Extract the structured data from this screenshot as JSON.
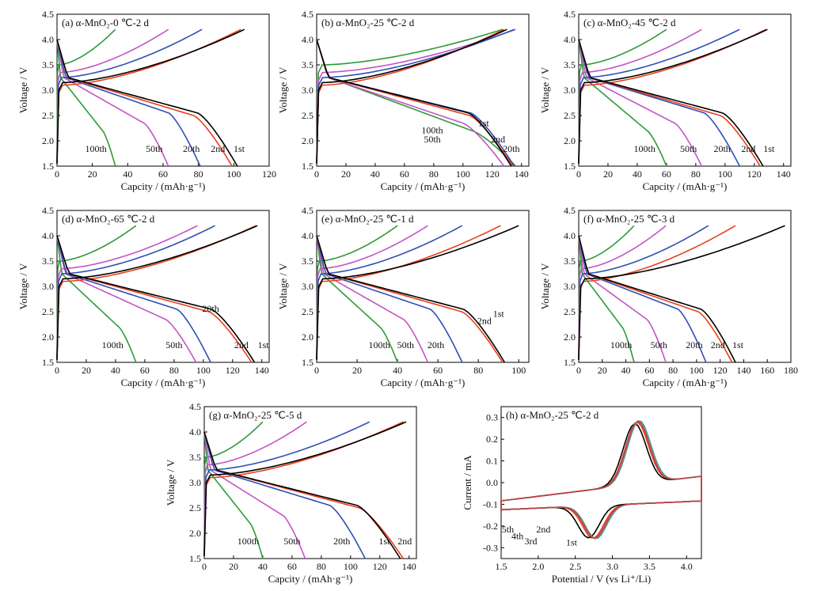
{
  "colors": {
    "c1": "#000000",
    "c2": "#e8401c",
    "c20": "#2f4fb5",
    "c50": "#c454c4",
    "c100": "#2e9a3a",
    "c3": "#c44040",
    "c4": "#888888",
    "c5": "#2fa0a0"
  },
  "chart_data": [
    {
      "id": "a",
      "type": "line",
      "title": "(a) α-MnO₂-0 ℃-2 d",
      "xlabel": "Capcity / (mAh·g⁻¹)",
      "ylabel": "Voltage / V",
      "xlim": [
        0,
        120
      ],
      "ylim": [
        1.5,
        4.5
      ],
      "xticks": [
        0,
        20,
        40,
        60,
        80,
        100,
        120
      ],
      "yticks": [
        1.5,
        2.0,
        2.5,
        3.0,
        3.5,
        4.0,
        4.5
      ],
      "cycles": [
        {
          "name": "1st",
          "discharge_capacity": 102,
          "charge_capacity": 106
        },
        {
          "name": "2nd",
          "discharge_capacity": 99,
          "charge_capacity": 104
        },
        {
          "name": "20th",
          "discharge_capacity": 81,
          "charge_capacity": 82
        },
        {
          "name": "50th",
          "discharge_capacity": 63,
          "charge_capacity": 63
        },
        {
          "name": "100th",
          "discharge_capacity": 33,
          "charge_capacity": 33
        }
      ],
      "labels": [
        {
          "text": "100th",
          "x": 22,
          "y": 1.78
        },
        {
          "text": "50th",
          "x": 55,
          "y": 1.78
        },
        {
          "text": "20th",
          "x": 76,
          "y": 1.78
        },
        {
          "text": "2nd",
          "x": 91,
          "y": 1.78
        },
        {
          "text": "1st",
          "x": 103,
          "y": 1.78
        }
      ]
    },
    {
      "id": "b",
      "type": "line",
      "title": "(b) α-MnO₂-25 ℃-2 d",
      "xlabel": "Capcity / (mAh·g⁻¹)",
      "ylabel": "Voltage / V",
      "xlim": [
        0,
        145
      ],
      "ylim": [
        1.5,
        4.5
      ],
      "xticks": [
        0,
        20,
        40,
        60,
        80,
        100,
        120,
        140
      ],
      "yticks": [
        1.5,
        2.0,
        2.5,
        3.0,
        3.5,
        4.0,
        4.5
      ],
      "cycles": [
        {
          "name": "1st",
          "discharge_capacity": 133,
          "charge_capacity": 130
        },
        {
          "name": "2nd",
          "discharge_capacity": 134,
          "charge_capacity": 128
        },
        {
          "name": "20th",
          "discharge_capacity": 135,
          "charge_capacity": 135
        },
        {
          "name": "50th",
          "discharge_capacity": 128,
          "charge_capacity": 136
        },
        {
          "name": "100th",
          "discharge_capacity": 136,
          "charge_capacity": 127
        }
      ],
      "labels": [
        {
          "text": "100th",
          "x": 79,
          "y": 2.15
        },
        {
          "text": "50th",
          "x": 79,
          "y": 1.97
        },
        {
          "text": "1st",
          "x": 114,
          "y": 2.29
        },
        {
          "text": "2nd",
          "x": 124,
          "y": 1.97
        },
        {
          "text": "20th",
          "x": 133,
          "y": 1.78
        }
      ]
    },
    {
      "id": "c",
      "type": "line",
      "title": "(c) α-MnO₂-45 ℃-2 d",
      "xlabel": "Capcity / (mAh·g⁻¹)",
      "ylabel": "Voltage / V",
      "xlim": [
        0,
        145
      ],
      "ylim": [
        1.5,
        4.5
      ],
      "xticks": [
        0,
        20,
        40,
        60,
        80,
        100,
        120,
        140
      ],
      "yticks": [
        1.5,
        2.0,
        2.5,
        3.0,
        3.5,
        4.0,
        4.5
      ],
      "cycles": [
        {
          "name": "1st",
          "discharge_capacity": 126,
          "charge_capacity": 129
        },
        {
          "name": "2nd",
          "discharge_capacity": 124,
          "charge_capacity": 128
        },
        {
          "name": "20th",
          "discharge_capacity": 110,
          "charge_capacity": 110
        },
        {
          "name": "50th",
          "discharge_capacity": 84,
          "charge_capacity": 84
        },
        {
          "name": "100th",
          "discharge_capacity": 60,
          "charge_capacity": 60
        }
      ],
      "labels": [
        {
          "text": "100th",
          "x": 45,
          "y": 1.78
        },
        {
          "text": "50th",
          "x": 75,
          "y": 1.78
        },
        {
          "text": "20th",
          "x": 98,
          "y": 1.78
        },
        {
          "text": "2nd",
          "x": 116,
          "y": 1.78
        },
        {
          "text": "1st",
          "x": 130,
          "y": 1.78
        }
      ]
    },
    {
      "id": "d",
      "type": "line",
      "title": "(d) α-MnO₂-65 ℃-2 d",
      "xlabel": "Capcity / (mAh·g⁻¹)",
      "ylabel": "Voltage / V",
      "xlim": [
        0,
        145
      ],
      "ylim": [
        1.5,
        4.5
      ],
      "xticks": [
        0,
        20,
        40,
        60,
        80,
        100,
        120,
        140
      ],
      "yticks": [
        1.5,
        2.0,
        2.5,
        3.0,
        3.5,
        4.0,
        4.5
      ],
      "cycles": [
        {
          "name": "1st",
          "discharge_capacity": 135,
          "charge_capacity": 137
        },
        {
          "name": "2nd",
          "discharge_capacity": 133,
          "charge_capacity": 136
        },
        {
          "name": "20th",
          "discharge_capacity": 105,
          "charge_capacity": 108
        },
        {
          "name": "50th",
          "discharge_capacity": 95,
          "charge_capacity": 96
        },
        {
          "name": "100th",
          "discharge_capacity": 54,
          "charge_capacity": 54
        }
      ],
      "labels": [
        {
          "text": "100th",
          "x": 38,
          "y": 1.78
        },
        {
          "text": "50th",
          "x": 80,
          "y": 1.78
        },
        {
          "text": "20th",
          "x": 105,
          "y": 2.5
        },
        {
          "text": "2nd",
          "x": 126,
          "y": 1.78
        },
        {
          "text": "1st",
          "x": 141,
          "y": 1.78
        }
      ]
    },
    {
      "id": "e",
      "type": "line",
      "title": "(e) α-MnO₂-25 ℃-1 d",
      "xlabel": "Capcity / (mAh·g⁻¹)",
      "ylabel": "Voltage / V",
      "xlim": [
        0,
        105
      ],
      "ylim": [
        1.5,
        4.5
      ],
      "xticks": [
        0,
        20,
        40,
        60,
        80,
        100
      ],
      "yticks": [
        1.5,
        2.0,
        2.5,
        3.0,
        3.5,
        4.0,
        4.5
      ],
      "cycles": [
        {
          "name": "1st",
          "discharge_capacity": 93,
          "charge_capacity": 100
        },
        {
          "name": "2nd",
          "discharge_capacity": 92,
          "charge_capacity": 91
        },
        {
          "name": "20th",
          "discharge_capacity": 72,
          "charge_capacity": 72
        },
        {
          "name": "50th",
          "discharge_capacity": 55,
          "charge_capacity": 55
        },
        {
          "name": "100th",
          "discharge_capacity": 40,
          "charge_capacity": 40
        }
      ],
      "labels": [
        {
          "text": "100th",
          "x": 31,
          "y": 1.78
        },
        {
          "text": "50th",
          "x": 44,
          "y": 1.78
        },
        {
          "text": "20th",
          "x": 59,
          "y": 1.78
        },
        {
          "text": "2nd",
          "x": 83,
          "y": 2.26
        },
        {
          "text": "1st",
          "x": 90,
          "y": 2.4
        }
      ]
    },
    {
      "id": "f",
      "type": "line",
      "title": "(f) α-MnO₂-25 ℃-3 d",
      "xlabel": "Capcity / (mAh·g⁻¹)",
      "ylabel": "Voltage / V",
      "xlim": [
        0,
        180
      ],
      "ylim": [
        1.5,
        4.5
      ],
      "xticks": [
        0,
        20,
        40,
        60,
        80,
        100,
        120,
        140,
        160,
        180
      ],
      "yticks": [
        1.5,
        2.0,
        2.5,
        3.0,
        3.5,
        4.0,
        4.5
      ],
      "cycles": [
        {
          "name": "1st",
          "discharge_capacity": 133,
          "charge_capacity": 175
        },
        {
          "name": "2nd",
          "discharge_capacity": 130,
          "charge_capacity": 133
        },
        {
          "name": "20th",
          "discharge_capacity": 108,
          "charge_capacity": 110
        },
        {
          "name": "50th",
          "discharge_capacity": 74,
          "charge_capacity": 74
        },
        {
          "name": "100th",
          "discharge_capacity": 47,
          "charge_capacity": 47
        }
      ],
      "labels": [
        {
          "text": "100th",
          "x": 36,
          "y": 1.78
        },
        {
          "text": "50th",
          "x": 68,
          "y": 1.78
        },
        {
          "text": "20th",
          "x": 98,
          "y": 1.78
        },
        {
          "text": "2nd",
          "x": 118,
          "y": 1.78
        },
        {
          "text": "1st",
          "x": 135,
          "y": 1.78
        }
      ]
    },
    {
      "id": "g",
      "type": "line",
      "title": "(g) α-MnO₂-25 ℃-5 d",
      "xlabel": "Capcity / (mAh·g⁻¹)",
      "ylabel": "Voltage / V",
      "xlim": [
        0,
        145
      ],
      "ylim": [
        1.5,
        4.5
      ],
      "xticks": [
        0,
        20,
        40,
        60,
        80,
        100,
        120,
        140
      ],
      "yticks": [
        1.5,
        2.0,
        2.5,
        3.0,
        3.5,
        4.0,
        4.5
      ],
      "cycles": [
        {
          "name": "1st",
          "discharge_capacity": 134,
          "charge_capacity": 138
        },
        {
          "name": "2nd",
          "discharge_capacity": 136,
          "charge_capacity": 136
        },
        {
          "name": "20th",
          "discharge_capacity": 110,
          "charge_capacity": 113
        },
        {
          "name": "50th",
          "discharge_capacity": 69,
          "charge_capacity": 70
        },
        {
          "name": "100th",
          "discharge_capacity": 40,
          "charge_capacity": 40
        }
      ],
      "labels": [
        {
          "text": "100th",
          "x": 30,
          "y": 1.78
        },
        {
          "text": "50th",
          "x": 60,
          "y": 1.78
        },
        {
          "text": "20th",
          "x": 94,
          "y": 1.78
        },
        {
          "text": "1st",
          "x": 123,
          "y": 1.78
        },
        {
          "text": "2nd",
          "x": 137,
          "y": 1.78
        }
      ]
    },
    {
      "id": "h",
      "type": "line",
      "title": "(h) α-MnO₂-25 ℃-2 d",
      "xlabel": "Potential / V (vs Li⁺/Li)",
      "ylabel": "Current / mA",
      "xlim": [
        1.5,
        4.2
      ],
      "ylim": [
        -0.35,
        0.35
      ],
      "xticks": [
        1.5,
        2.0,
        2.5,
        3.0,
        3.5,
        4.0
      ],
      "yticks": [
        -0.3,
        -0.2,
        -0.1,
        0.0,
        0.1,
        0.2,
        0.3
      ],
      "cycles": [
        {
          "name": "1st",
          "cathodic_peak_potential": 2.68,
          "cathodic_peak_current": -0.245,
          "anodic_peak_potential": 3.3,
          "anodic_peak_current": 0.28
        },
        {
          "name": "2nd",
          "cathodic_peak_potential": 2.74,
          "cathodic_peak_current": -0.25,
          "anodic_peak_potential": 3.33,
          "anodic_peak_current": 0.285
        },
        {
          "name": "3rd",
          "cathodic_peak_potential": 2.76,
          "cathodic_peak_current": -0.25,
          "anodic_peak_potential": 3.34,
          "anodic_peak_current": 0.29
        },
        {
          "name": "4th",
          "cathodic_peak_potential": 2.77,
          "cathodic_peak_current": -0.252,
          "anodic_peak_potential": 3.35,
          "anodic_peak_current": 0.29
        },
        {
          "name": "5th",
          "cathodic_peak_potential": 2.78,
          "cathodic_peak_current": -0.255,
          "anodic_peak_potential": 3.36,
          "anodic_peak_current": 0.292
        }
      ],
      "labels": [
        {
          "text": "5th",
          "x": 1.59,
          "y": -0.23
        },
        {
          "text": "4th",
          "x": 1.72,
          "y": -0.26
        },
        {
          "text": "3rd",
          "x": 1.9,
          "y": -0.285
        },
        {
          "text": "2nd",
          "x": 2.07,
          "y": -0.23
        },
        {
          "text": "1st",
          "x": 2.45,
          "y": -0.29
        }
      ]
    }
  ]
}
